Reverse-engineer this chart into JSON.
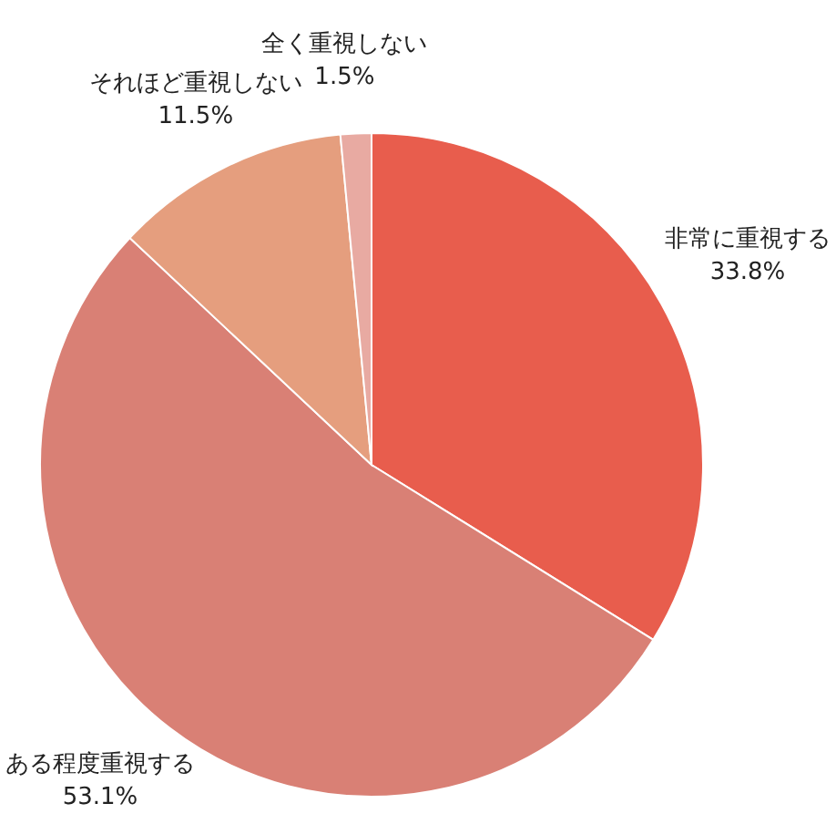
{
  "chart_data": {
    "type": "pie",
    "categories": [
      "非常に重視する",
      "ある程度重視する",
      "それほど重視しない",
      "全く重視しない"
    ],
    "values": [
      33.8,
      53.1,
      11.5,
      1.5
    ],
    "colors": [
      "#e85d4d",
      "#d98075",
      "#e59e7e",
      "#e8aaa2"
    ],
    "value_labels": [
      "33.8%",
      "53.1%",
      "11.5%",
      "1.5%"
    ]
  }
}
